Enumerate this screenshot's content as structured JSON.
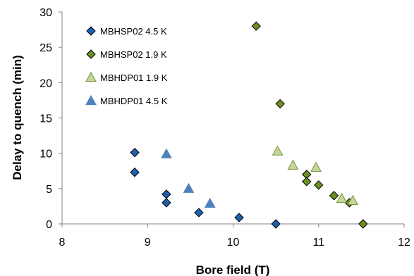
{
  "chart_data": {
    "type": "scatter",
    "xlabel": "Bore field (T)",
    "ylabel": "Delay to quench (min)",
    "xlim": [
      8,
      12
    ],
    "ylim": [
      0,
      30
    ],
    "xticks": [
      8,
      9,
      10,
      11,
      12
    ],
    "yticks": [
      0,
      5,
      10,
      15,
      20,
      25,
      30
    ],
    "grid": false,
    "legend_position": "top-left",
    "series": [
      {
        "name": "MBHSP02 4.5 K",
        "marker": "diamond",
        "color": "#1f5fb0",
        "x": [
          8.85,
          8.85,
          9.22,
          9.22,
          9.6,
          10.07,
          10.5
        ],
        "y": [
          10.1,
          7.3,
          4.2,
          3.0,
          1.6,
          0.9,
          0.0
        ]
      },
      {
        "name": "MBHSP02 1.9 K",
        "marker": "diamond",
        "color": "#6b8e23",
        "x": [
          10.27,
          10.55,
          10.86,
          10.86,
          11.0,
          11.18,
          11.36,
          11.52
        ],
        "y": [
          28.0,
          17.0,
          7.0,
          6.0,
          5.5,
          4.0,
          3.0,
          0.0
        ]
      },
      {
        "name": "MBHDP01 1.9 K",
        "marker": "triangle",
        "color": "#c4d79b",
        "x": [
          10.52,
          10.7,
          10.97,
          11.27,
          11.4
        ],
        "y": [
          10.3,
          8.3,
          8.0,
          3.6,
          3.3
        ]
      },
      {
        "name": "MBHDP01 4.5 K",
        "marker": "triangle",
        "color": "#4f81bd",
        "x": [
          9.22,
          9.48,
          9.73
        ],
        "y": [
          9.9,
          5.0,
          2.9
        ]
      }
    ]
  }
}
